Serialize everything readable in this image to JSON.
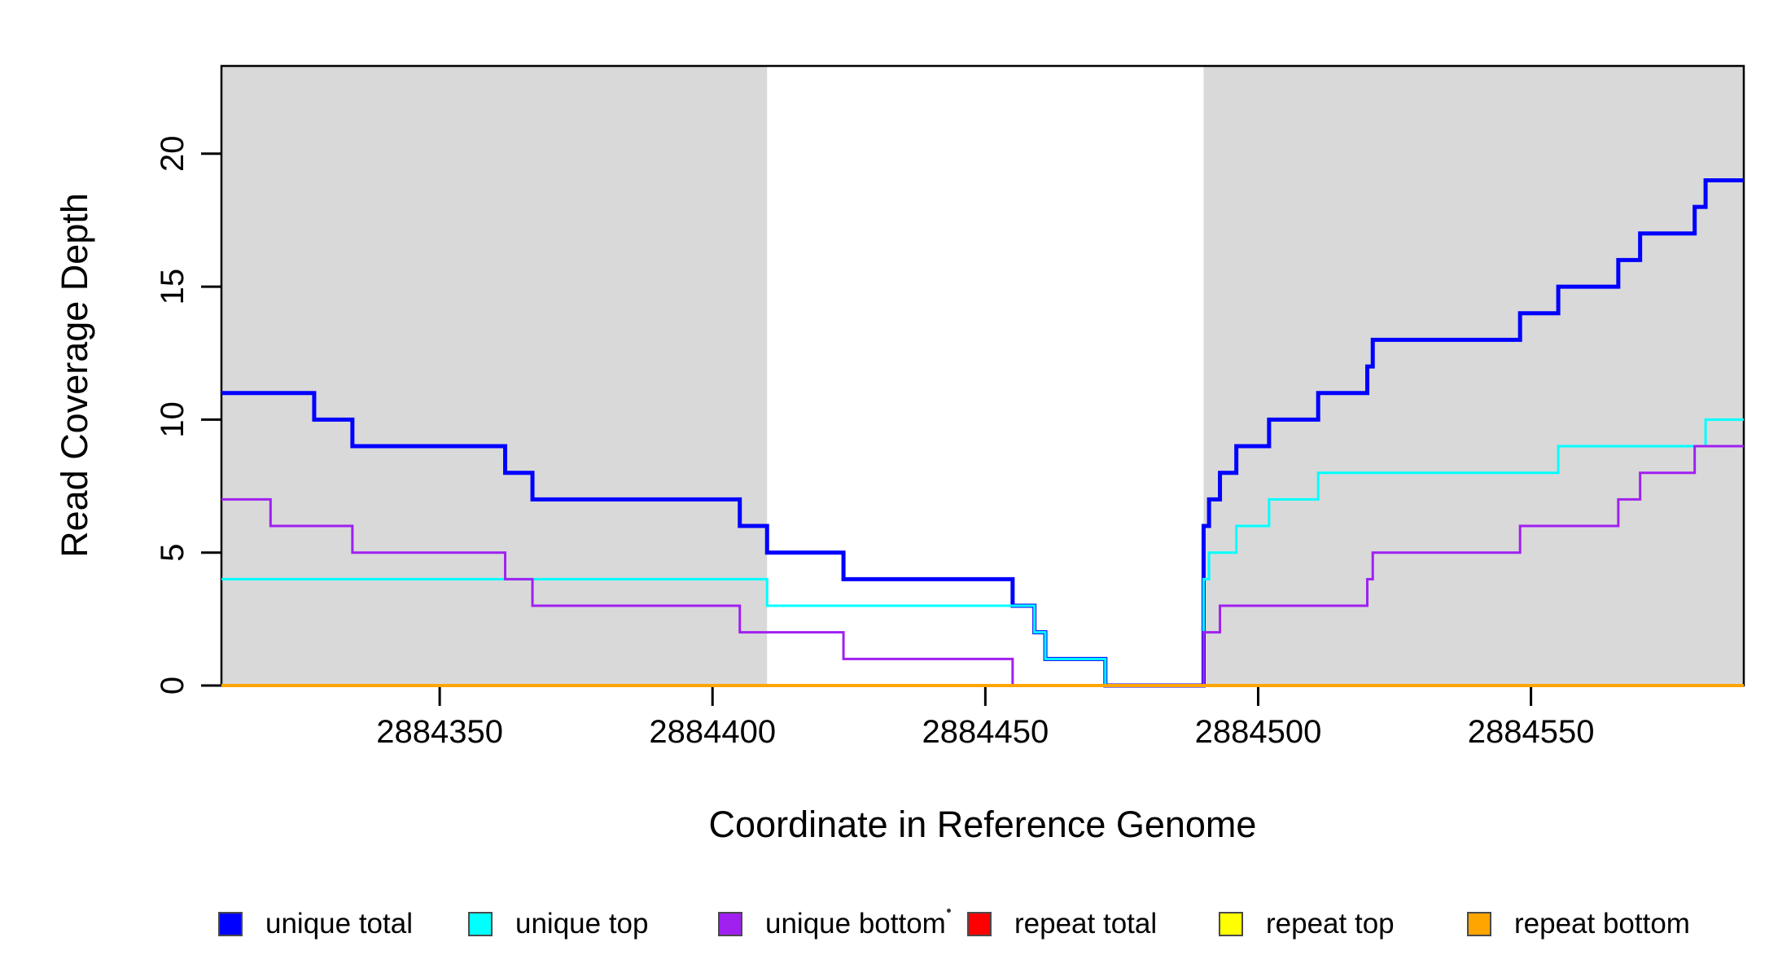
{
  "figure": {
    "background": "#ffffff"
  },
  "chart_data": {
    "type": "line",
    "subtype": "step-after-coverage-plot",
    "title": "",
    "xlabel": "Coordinate in Reference Genome",
    "ylabel": "Read Coverage Depth",
    "xlim": [
      2884310,
      2884589
    ],
    "ylim": [
      0,
      23.3
    ],
    "x_ticks": [
      2884350,
      2884400,
      2884450,
      2884500,
      2884550
    ],
    "y_ticks": [
      0,
      5,
      10,
      15,
      20
    ],
    "grid": false,
    "shaded_regions": {
      "color": "#D9D9D9",
      "meaning": "repeat-region-shading",
      "ranges": [
        [
          2884310,
          2884410
        ],
        [
          2884490,
          2884589
        ]
      ]
    },
    "series": [
      {
        "name": "unique total",
        "color": "#0000FF",
        "width": 5,
        "steps": [
          [
            2884310,
            11
          ],
          [
            2884327,
            10
          ],
          [
            2884334,
            9
          ],
          [
            2884362,
            8
          ],
          [
            2884367,
            7
          ],
          [
            2884405,
            6
          ],
          [
            2884410,
            5
          ],
          [
            2884424,
            4
          ],
          [
            2884455,
            3
          ],
          [
            2884459,
            2
          ],
          [
            2884461,
            1
          ],
          [
            2884472,
            0
          ],
          [
            2884490,
            6
          ],
          [
            2884491,
            7
          ],
          [
            2884493,
            8
          ],
          [
            2884496,
            9
          ],
          [
            2884502,
            10
          ],
          [
            2884511,
            11
          ],
          [
            2884520,
            12
          ],
          [
            2884521,
            13
          ],
          [
            2884548,
            14
          ],
          [
            2884555,
            15
          ],
          [
            2884566,
            16
          ],
          [
            2884570,
            17
          ],
          [
            2884580,
            18
          ],
          [
            2884582,
            19
          ],
          [
            2884589,
            19
          ]
        ]
      },
      {
        "name": "unique top",
        "color": "#00FFFF",
        "width": 3,
        "steps": [
          [
            2884310,
            4
          ],
          [
            2884410,
            3
          ],
          [
            2884459,
            2
          ],
          [
            2884461,
            1
          ],
          [
            2884472,
            0
          ],
          [
            2884490,
            4
          ],
          [
            2884491,
            5
          ],
          [
            2884496,
            6
          ],
          [
            2884502,
            7
          ],
          [
            2884511,
            8
          ],
          [
            2884555,
            9
          ],
          [
            2884582,
            10
          ],
          [
            2884589,
            10
          ]
        ]
      },
      {
        "name": "unique bottom",
        "color": "#A020F0",
        "width": 3,
        "steps": [
          [
            2884310,
            7
          ],
          [
            2884319,
            6
          ],
          [
            2884334,
            5
          ],
          [
            2884362,
            4
          ],
          [
            2884367,
            3
          ],
          [
            2884405,
            2
          ],
          [
            2884424,
            1
          ],
          [
            2884455,
            0
          ],
          [
            2884490,
            2
          ],
          [
            2884493,
            3
          ],
          [
            2884520,
            4
          ],
          [
            2884521,
            5
          ],
          [
            2884548,
            6
          ],
          [
            2884566,
            7
          ],
          [
            2884570,
            8
          ],
          [
            2884580,
            9
          ],
          [
            2884589,
            9
          ]
        ]
      },
      {
        "name": "repeat total",
        "color": "#FF0000",
        "width": 3,
        "steps": [
          [
            2884310,
            0
          ],
          [
            2884589,
            0
          ]
        ]
      },
      {
        "name": "repeat top",
        "color": "#FFFF00",
        "width": 3,
        "steps": [
          [
            2884310,
            0
          ],
          [
            2884589,
            0
          ]
        ]
      },
      {
        "name": "repeat bottom",
        "color": "#FFA500",
        "width": 4,
        "steps": [
          [
            2884310,
            0
          ],
          [
            2884589,
            0
          ]
        ]
      }
    ]
  },
  "legend": {
    "items": [
      {
        "label": "unique total",
        "color": "#0000FF"
      },
      {
        "label": "unique top",
        "color": "#00FFFF"
      },
      {
        "label": "unique bottom",
        "color": "#A020F0"
      },
      {
        "label": "repeat total",
        "color": "#FF0000"
      },
      {
        "label": "repeat top",
        "color": "#FFFF00"
      },
      {
        "label": "repeat bottom",
        "color": "#FFA500"
      }
    ]
  }
}
